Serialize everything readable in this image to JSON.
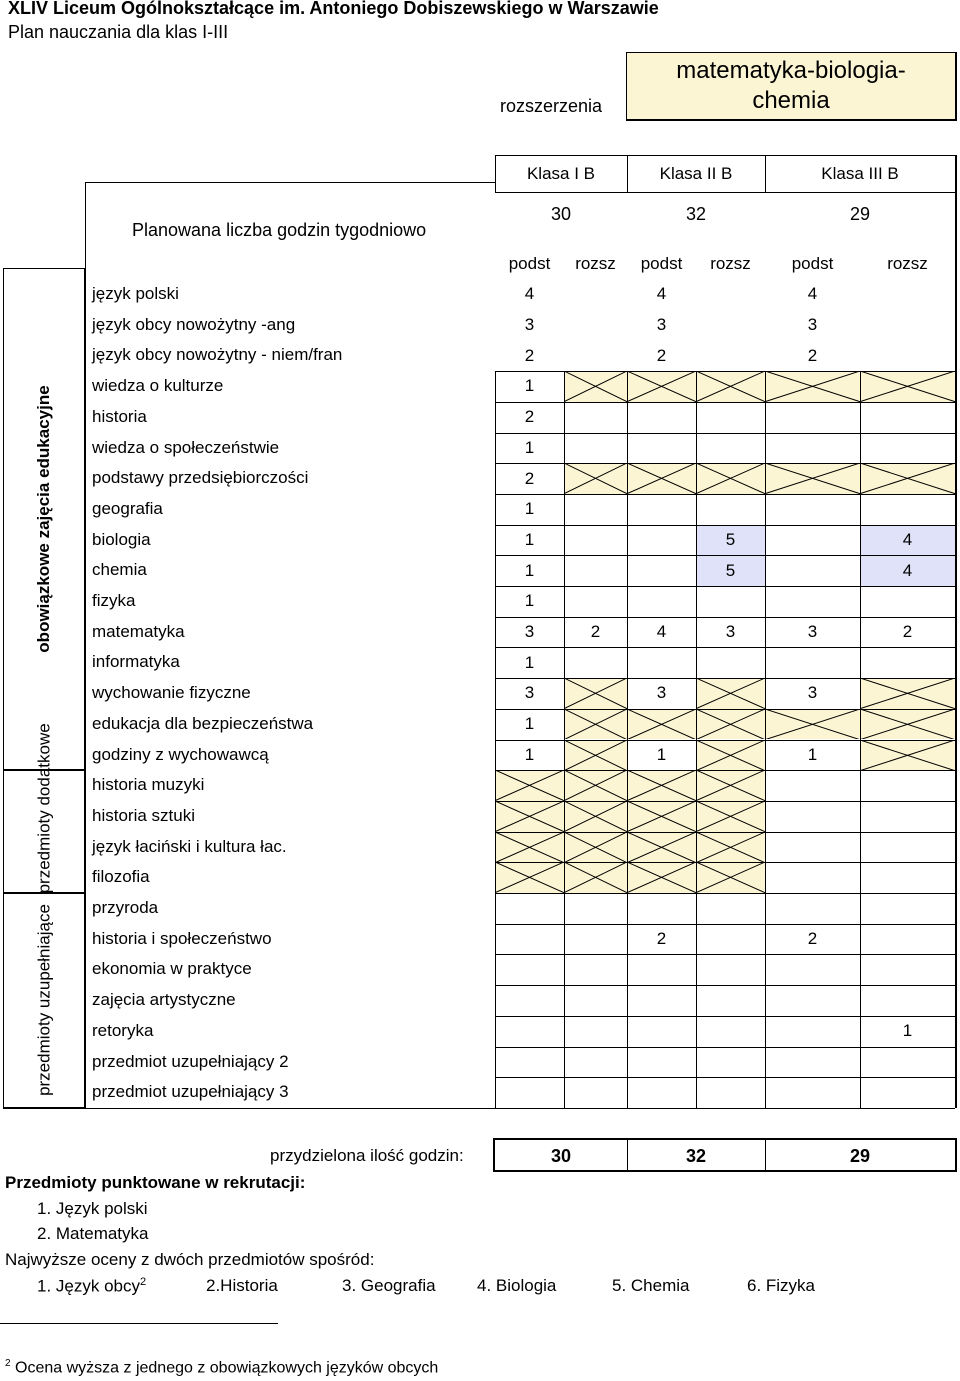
{
  "school_title": "XLIV Liceum Ogólnokształcące im. Antoniego Dobiszewskiego w Warszawie",
  "plan_title": "Plan nauczania dla klas I-III",
  "rozszerzenia_label": "rozszerzenia",
  "profile_name": "matematyka-biologia-chemia",
  "classes": [
    "Klasa I B",
    "Klasa II B",
    "Klasa III B"
  ],
  "planned_hours_label": "Planowana liczba godzin tygodniowo",
  "planned_hours": [
    "30",
    "32",
    "29"
  ],
  "col_headers": [
    "podst",
    "rozsz",
    "podst",
    "rozsz",
    "podst",
    "rozsz"
  ],
  "groups": [
    {
      "label": "obowiązkowe zajęcia edukacyjne"
    },
    {
      "label": "przedmioty dodatkowe"
    },
    {
      "label": "przedmioty uzupełniające"
    }
  ],
  "subjects": [
    {
      "name": "język polski",
      "vals": [
        "4",
        "",
        "4",
        "",
        "4",
        ""
      ]
    },
    {
      "name": "język obcy nowożytny -ang",
      "vals": [
        "3",
        "",
        "3",
        "",
        "3",
        ""
      ]
    },
    {
      "name": "język obcy nowożytny - niem/fran",
      "vals": [
        "2",
        "",
        "2",
        "",
        "2",
        ""
      ]
    },
    {
      "name": "wiedza o kulturze",
      "vals": [
        "1",
        "",
        "",
        "",
        "",
        ""
      ]
    },
    {
      "name": "historia",
      "vals": [
        "2",
        "",
        "",
        "",
        "",
        ""
      ]
    },
    {
      "name": "wiedza o społeczeństwie",
      "vals": [
        "1",
        "",
        "",
        "",
        "",
        ""
      ]
    },
    {
      "name": "podstawy przedsiębiorczości",
      "vals": [
        "2",
        "",
        "",
        "",
        "",
        ""
      ]
    },
    {
      "name": "geografia",
      "vals": [
        "1",
        "",
        "",
        "",
        "",
        ""
      ]
    },
    {
      "name": "biologia",
      "vals": [
        "1",
        "",
        "",
        "5",
        "",
        "4"
      ]
    },
    {
      "name": "chemia",
      "vals": [
        "1",
        "",
        "",
        "5",
        "",
        "4"
      ]
    },
    {
      "name": "fizyka",
      "vals": [
        "1",
        "",
        "",
        "",
        "",
        ""
      ]
    },
    {
      "name": "matematyka",
      "vals": [
        "3",
        "2",
        "4",
        "3",
        "3",
        "2"
      ]
    },
    {
      "name": "informatyka",
      "vals": [
        "1",
        "",
        "",
        "",
        "",
        ""
      ]
    },
    {
      "name": "wychowanie fizyczne",
      "vals": [
        "3",
        "",
        "3",
        "",
        "3",
        ""
      ]
    },
    {
      "name": "edukacja dla bezpieczeństwa",
      "vals": [
        "1",
        "",
        "",
        "",
        "",
        ""
      ]
    },
    {
      "name": "godziny z wychowawcą",
      "vals": [
        "1",
        "",
        "1",
        "",
        "1",
        ""
      ]
    },
    {
      "name": "historia muzyki",
      "vals": [
        "",
        "",
        "",
        "",
        "",
        ""
      ]
    },
    {
      "name": "historia sztuki",
      "vals": [
        "",
        "",
        "",
        "",
        "",
        ""
      ]
    },
    {
      "name": "język łaciński i kultura łac.",
      "vals": [
        "",
        "",
        "",
        "",
        "",
        ""
      ]
    },
    {
      "name": "filozofia",
      "vals": [
        "",
        "",
        "",
        "",
        "",
        ""
      ]
    },
    {
      "name": "przyroda",
      "vals": [
        "",
        "",
        "",
        "",
        "",
        ""
      ]
    },
    {
      "name": "historia i społeczeństwo",
      "vals": [
        "",
        "",
        "2",
        "",
        "2",
        ""
      ]
    },
    {
      "name": "ekonomia w praktyce",
      "vals": [
        "",
        "",
        "",
        "",
        "",
        ""
      ]
    },
    {
      "name": "zajęcia artystyczne",
      "vals": [
        "",
        "",
        "",
        "",
        "",
        ""
      ]
    },
    {
      "name": "retoryka",
      "vals": [
        "",
        "",
        "",
        "",
        "",
        "1"
      ]
    },
    {
      "name": "przedmiot uzupełniający 2",
      "vals": [
        "",
        "",
        "",
        "",
        "",
        ""
      ]
    },
    {
      "name": "przedmiot uzupełniający 3",
      "vals": [
        "",
        "",
        "",
        "",
        "",
        ""
      ]
    }
  ],
  "allocated_label": "przydzielona ilość godzin:",
  "allocated_hours": [
    "30",
    "32",
    "29"
  ],
  "recruitment_title": "Przedmioty punktowane w rekrutacji:",
  "recruitment_items": [
    "1.  Język polski",
    "2.  Matematyka"
  ],
  "best_grades_title": "Najwyższe oceny z dwóch przedmiotów spośród:",
  "best_grades_items": [
    "1.  Język obcy",
    "2.Historia",
    "3. Geografia",
    "4. Biologia",
    "5. Chemia",
    "6. Fizyka"
  ],
  "footnote_mark": "2",
  "footnote_text": "Ocena wyższa z jednego z obowiązkowych języków obcych",
  "colors": {
    "shaded": "#fcf5d3",
    "blue": "#dfe2f8"
  }
}
